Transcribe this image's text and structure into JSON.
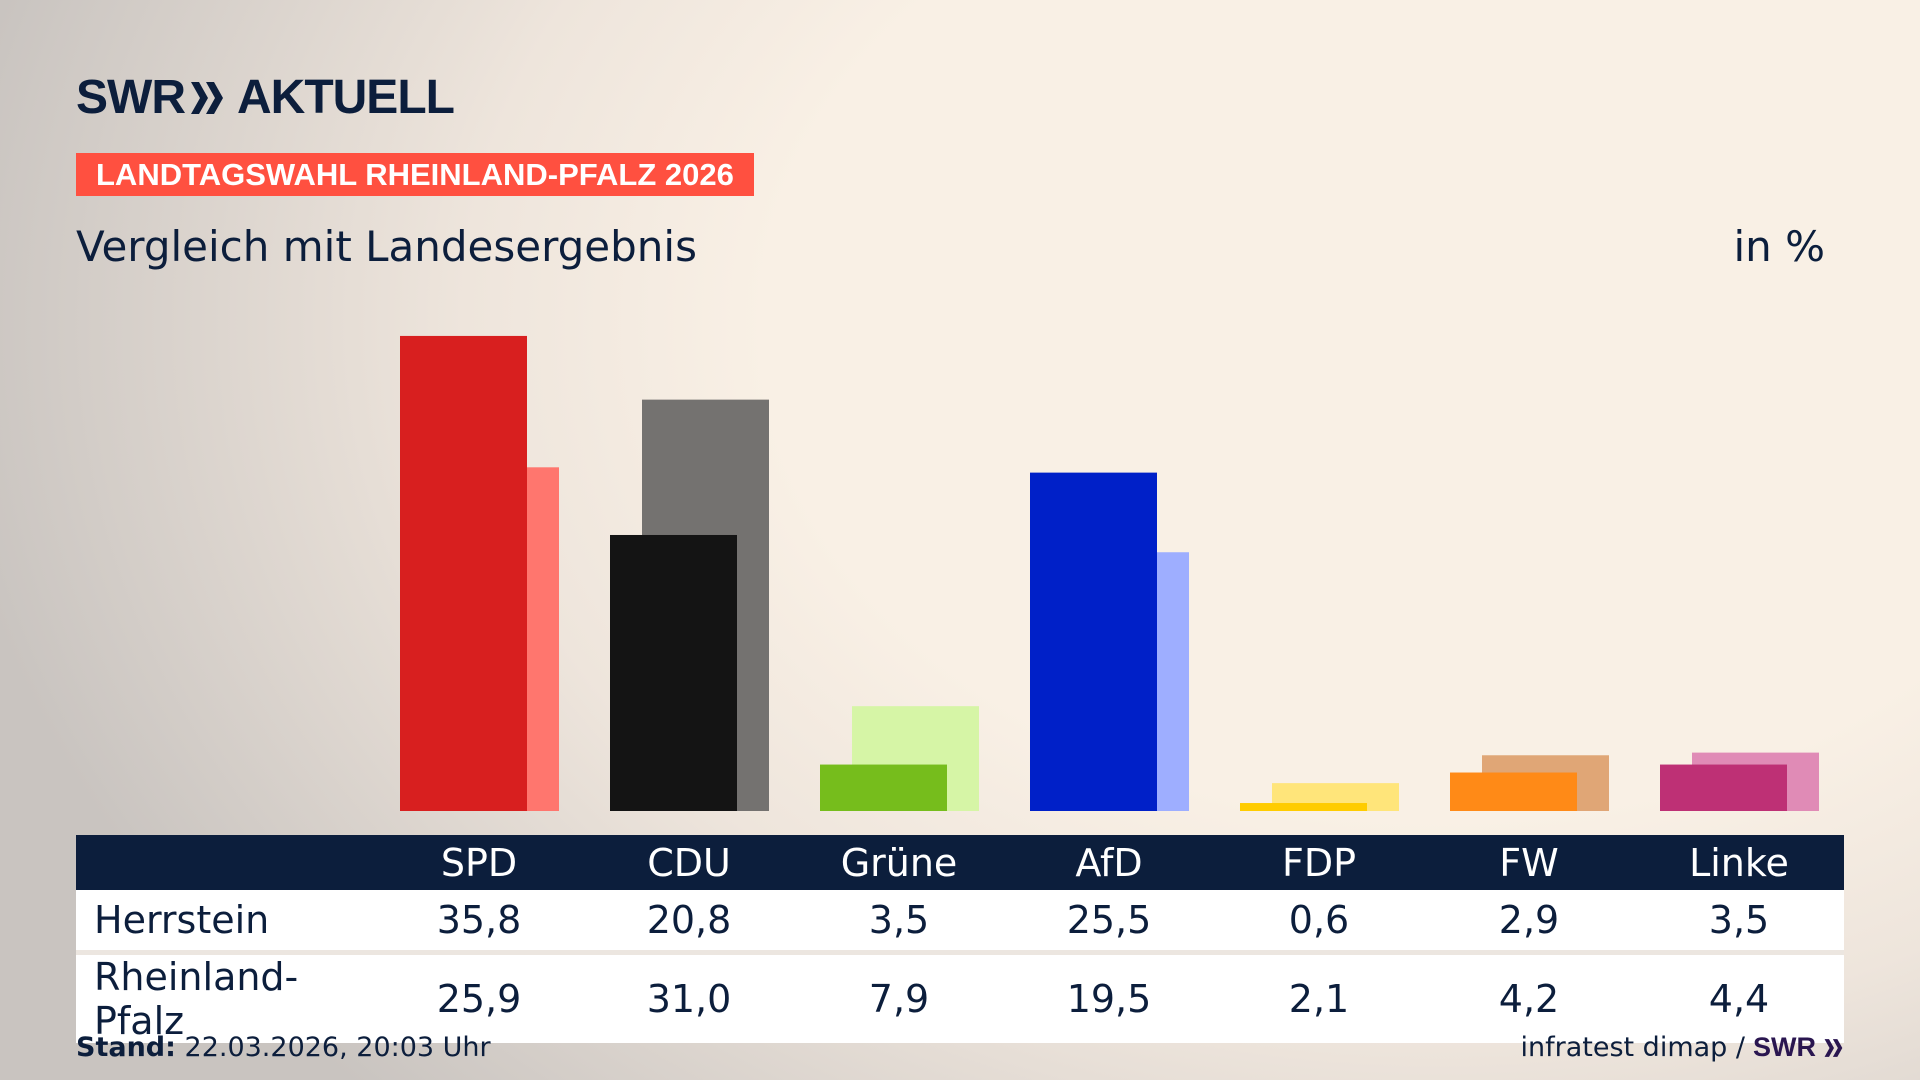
{
  "header": {
    "logo": "SWR AKTUELL",
    "logo_left": "SWR",
    "logo_right": "AKTUELL",
    "banner": "LANDTAGSWAHL RHEINLAND-PFALZ 2026",
    "subtitle": "Vergleich mit Landesergebnis",
    "unit": "in %"
  },
  "chart_data": {
    "type": "bar",
    "categories": [
      "SPD",
      "CDU",
      "Grüne",
      "AfD",
      "FDP",
      "FW",
      "Linke"
    ],
    "series": [
      {
        "name": "Herrstein",
        "values": [
          35.8,
          20.8,
          3.5,
          25.5,
          0.6,
          2.9,
          3.5
        ]
      },
      {
        "name": "Rheinland-Pfalz",
        "values": [
          25.9,
          31.0,
          7.9,
          19.5,
          2.1,
          4.2,
          4.4
        ]
      }
    ],
    "colors": {
      "primary": [
        "#d81f1f",
        "#141414",
        "#76bd1c",
        "#0020c8",
        "#ffcc00",
        "#ff8a17",
        "#be3075"
      ],
      "secondary": [
        "#ff766e",
        "#747270",
        "#d6f5a6",
        "#9eaeff",
        "#ffe57a",
        "#e0a676",
        "#e08bb6"
      ]
    },
    "ylim": [
      0,
      36
    ],
    "grid": false
  },
  "table": {
    "header": [
      "",
      "SPD",
      "CDU",
      "Grüne",
      "AfD",
      "FDP",
      "FW",
      "Linke"
    ],
    "rows": [
      [
        "Herrstein",
        "35,8",
        "20,8",
        "3,5",
        "25,5",
        "0,6",
        "2,9",
        "3,5"
      ],
      [
        "Rheinland-Pfalz",
        "25,9",
        "31,0",
        "7,9",
        "19,5",
        "2,1",
        "4,2",
        "4,4"
      ]
    ]
  },
  "footer": {
    "stand_label": "Stand:",
    "stand_value": "22.03.2026, 20:03 Uhr",
    "source": "infratest dimap /",
    "source_logo": "SWR"
  }
}
